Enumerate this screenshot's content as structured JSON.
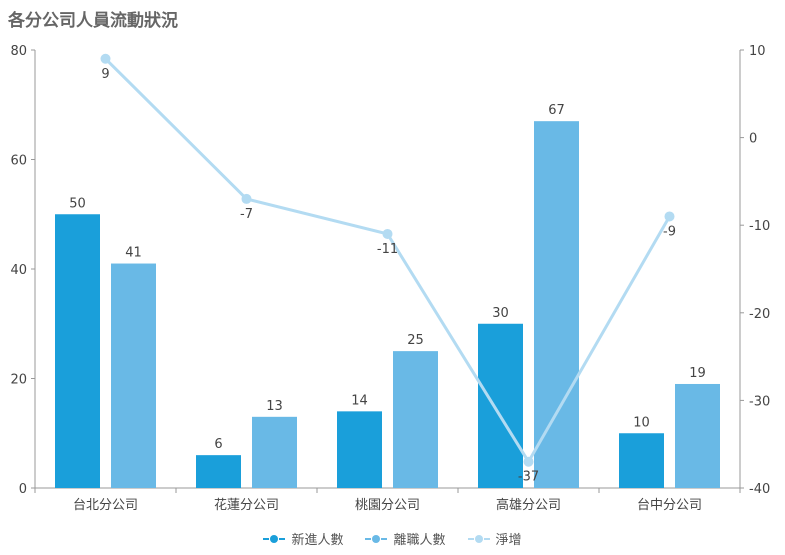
{
  "title": "各分公司人員流動狀況",
  "colors": {
    "new": "#1a9fda",
    "leave": "#69b9e6",
    "net": "#b3dbf2",
    "axis": "#999999",
    "text": "#444444"
  },
  "legend": [
    {
      "label": "新進人數",
      "color": "#1a9fda"
    },
    {
      "label": "離職人數",
      "color": "#69b9e6"
    },
    {
      "label": "淨增",
      "color": "#b3dbf2"
    }
  ],
  "chart_data": {
    "type": "bar",
    "categories": [
      "台北分公司",
      "花蓮分公司",
      "桃園分公司",
      "高雄分公司",
      "台中分公司"
    ],
    "series": [
      {
        "name": "新進人數",
        "type": "bar",
        "axis": "left",
        "values": [
          50,
          6,
          14,
          30,
          10
        ]
      },
      {
        "name": "離職人數",
        "type": "bar",
        "axis": "left",
        "values": [
          41,
          13,
          25,
          67,
          19
        ]
      },
      {
        "name": "淨增",
        "type": "line",
        "axis": "right",
        "values": [
          9,
          -7,
          -11,
          -37,
          -9
        ]
      }
    ],
    "left_axis": {
      "min": 0,
      "max": 80,
      "ticks": [
        "0",
        "20",
        "40",
        "60",
        "80"
      ]
    },
    "right_axis": {
      "min": -40,
      "max": 10,
      "ticks": [
        "10",
        "0",
        "-10",
        "-20",
        "-30",
        "-40"
      ]
    },
    "legend_position": "bottom"
  }
}
